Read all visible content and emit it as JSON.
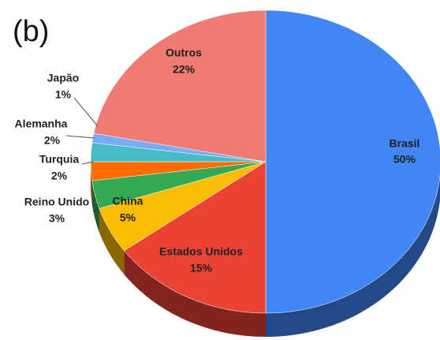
{
  "chart_data": {
    "type": "pie",
    "title": "(b)",
    "categories": [
      "Brasil",
      "Estados Unidos",
      "China",
      "Reino Unido",
      "Turquia",
      "Alemanha",
      "Japão",
      "Outros"
    ],
    "values": [
      50,
      15,
      5,
      3,
      2,
      2,
      1,
      22
    ],
    "value_labels": [
      "50%",
      "15%",
      "5%",
      "3%",
      "2%",
      "2%",
      "1%",
      "22%"
    ],
    "colors": [
      "#4285f4",
      "#ea4335",
      "#fbbc04",
      "#34a853",
      "#ff6d01",
      "#46bdc6",
      "#7baaf7",
      "#f07b72"
    ]
  }
}
